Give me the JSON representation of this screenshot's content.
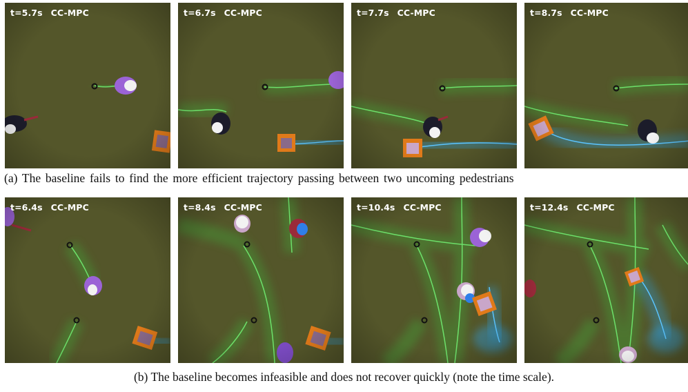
{
  "figure": {
    "rows": [
      {
        "id": "a",
        "caption": "(a) The baseline fails to find the more efficient trajectory passing between two uncoming pedestrians",
        "panels": [
          {
            "time": "t=5.7s",
            "method": "CC-MPC"
          },
          {
            "time": "t=6.7s",
            "method": "CC-MPC"
          },
          {
            "time": "t=7.7s",
            "method": "CC-MPC"
          },
          {
            "time": "t=8.7s",
            "method": "CC-MPC"
          }
        ]
      },
      {
        "id": "b",
        "caption": "(b) The baseline becomes infeasible and does not recover quickly (note the time scale).",
        "panels": [
          {
            "time": "t=6.4s",
            "method": "CC-MPC"
          },
          {
            "time": "t=8.4s",
            "method": "CC-MPC"
          },
          {
            "time": "t=10.4s",
            "method": "CC-MPC"
          },
          {
            "time": "t=12.4s",
            "method": "CC-MPC"
          }
        ]
      }
    ]
  },
  "colors": {
    "ground": "#54562a",
    "pedestrian_trail": "#3fae3a",
    "robot_trail": "#2f9fe0",
    "robot_body": "#e07a1a",
    "pedestrian_purple": "#9b63d6",
    "pedestrian_head": "#f2f2f2"
  }
}
